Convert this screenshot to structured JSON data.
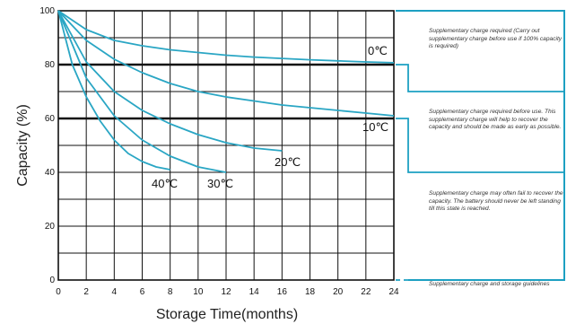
{
  "chart_data": {
    "type": "line",
    "title": "",
    "xlabel": "Storage Time(months)",
    "ylabel": "Capacity (%)",
    "xlim": [
      0,
      24
    ],
    "ylim": [
      0,
      100
    ],
    "xticks": [
      "0",
      "2",
      "4",
      "6",
      "8",
      "10",
      "12",
      "14",
      "16",
      "18",
      "20",
      "22",
      "24"
    ],
    "yticks": [
      "0",
      "20",
      "40",
      "60",
      "80",
      "100"
    ],
    "grid": true,
    "thresholds": [
      80,
      60,
      40,
      0
    ],
    "series": [
      {
        "name": "0℃",
        "x": [
          0,
          2,
          4,
          6,
          8,
          10,
          12,
          14,
          16,
          18,
          20,
          22,
          24
        ],
        "y": [
          100,
          93,
          89,
          87,
          85.5,
          84.5,
          83.5,
          82.8,
          82.3,
          81.8,
          81.4,
          81,
          80.7
        ]
      },
      {
        "name": "10℃",
        "x": [
          0,
          2,
          4,
          6,
          8,
          10,
          12,
          14,
          16,
          18,
          20,
          22,
          24
        ],
        "y": [
          100,
          89,
          82,
          77,
          73,
          70,
          68,
          66.5,
          65,
          64,
          63,
          62,
          61
        ]
      },
      {
        "name": "20℃",
        "x": [
          0,
          2,
          4,
          6,
          8,
          10,
          12,
          14,
          16
        ],
        "y": [
          100,
          81,
          70,
          63,
          58,
          54,
          51,
          49,
          48
        ]
      },
      {
        "name": "30℃",
        "x": [
          0,
          2,
          4,
          6,
          8,
          10,
          12
        ],
        "y": [
          100,
          75,
          61,
          52,
          46,
          42,
          40
        ]
      },
      {
        "name": "40℃",
        "x": [
          0,
          1,
          2,
          3,
          4,
          5,
          6,
          7,
          8
        ],
        "y": [
          100,
          80,
          68,
          59,
          52,
          47,
          44,
          42,
          41
        ]
      }
    ],
    "annotations": [
      "Supplementary charge required (Carry out supplementary charge before use if 100% capacity is required)",
      "Supplementary charge required before use. This supplementary charge will help to recover the capacity and should be made as early as possible.",
      "Supplementary charge may often fail to recover the capacity. The battery should never be left standing till this state is reached.",
      "Supplementary charge and storage guidelines"
    ]
  },
  "colors": {
    "curve": "#2aa6c4",
    "grid": "#111111",
    "threshold": "#111111",
    "band": "#1da0c2"
  }
}
